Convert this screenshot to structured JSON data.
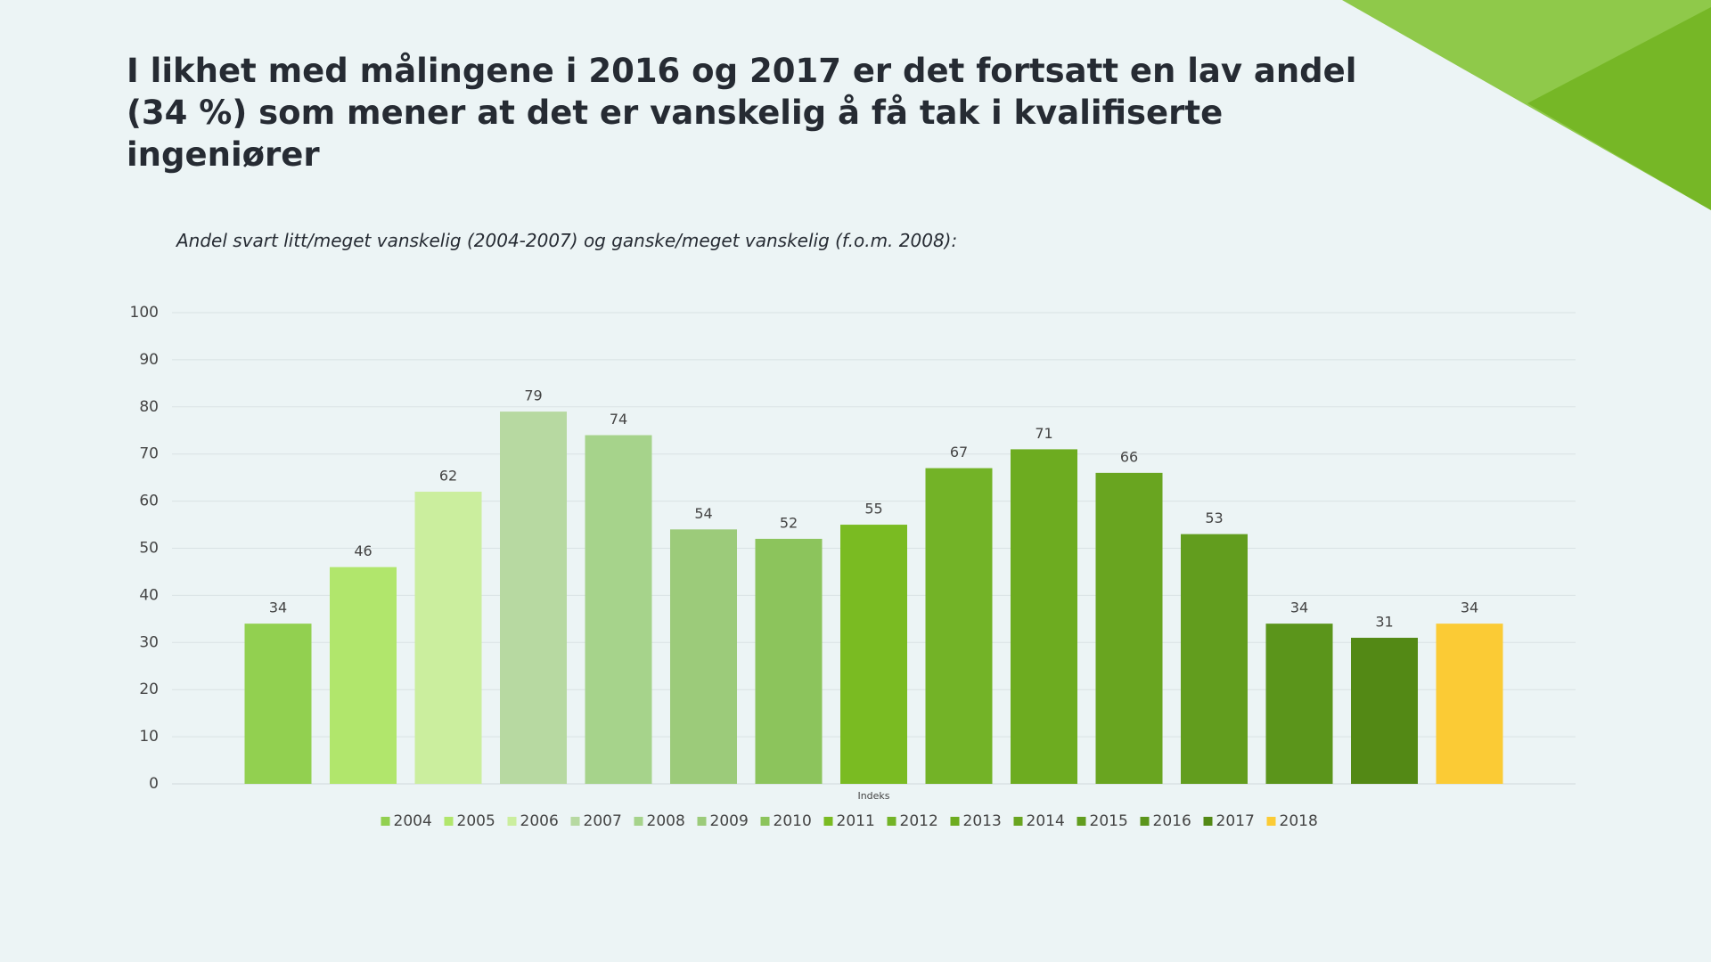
{
  "chart_data": {
    "type": "bar",
    "title": "I likhet med målingene i 2016 og 2017 er det fortsatt en lav andel (34 %) som mener at det er vanskelig å få tak i kvalifiserte ingeniører",
    "subtitle": "Andel svart litt/meget vanskelig (2004-2007) og ganske/meget vanskelig (f.o.m. 2008):",
    "categories": [
      "Indeks"
    ],
    "series": [
      {
        "name": "2004",
        "color": "#92d050",
        "values": [
          34
        ]
      },
      {
        "name": "2005",
        "color": "#b1e66c",
        "values": [
          46
        ]
      },
      {
        "name": "2006",
        "color": "#cbee9e",
        "values": [
          62
        ]
      },
      {
        "name": "2007",
        "color": "#b7d9a1",
        "values": [
          79
        ]
      },
      {
        "name": "2008",
        "color": "#a6d38b",
        "values": [
          74
        ]
      },
      {
        "name": "2009",
        "color": "#9ccb7a",
        "values": [
          54
        ]
      },
      {
        "name": "2010",
        "color": "#8cc45c",
        "values": [
          52
        ]
      },
      {
        "name": "2011",
        "color": "#7abb22",
        "values": [
          55
        ]
      },
      {
        "name": "2012",
        "color": "#73b327",
        "values": [
          67
        ]
      },
      {
        "name": "2013",
        "color": "#6dac20",
        "values": [
          71
        ]
      },
      {
        "name": "2014",
        "color": "#69a520",
        "values": [
          66
        ]
      },
      {
        "name": "2015",
        "color": "#629d1e",
        "values": [
          53
        ]
      },
      {
        "name": "2016",
        "color": "#5b951b",
        "values": [
          34
        ]
      },
      {
        "name": "2017",
        "color": "#538915",
        "values": [
          31
        ]
      },
      {
        "name": "2018",
        "color": "#fbcb35",
        "values": [
          34
        ]
      }
    ],
    "ylim": [
      0,
      100
    ],
    "yticks": [
      0,
      10,
      20,
      30,
      40,
      50,
      60,
      70,
      80,
      90,
      100
    ],
    "grid": true,
    "legend": "bottom"
  }
}
